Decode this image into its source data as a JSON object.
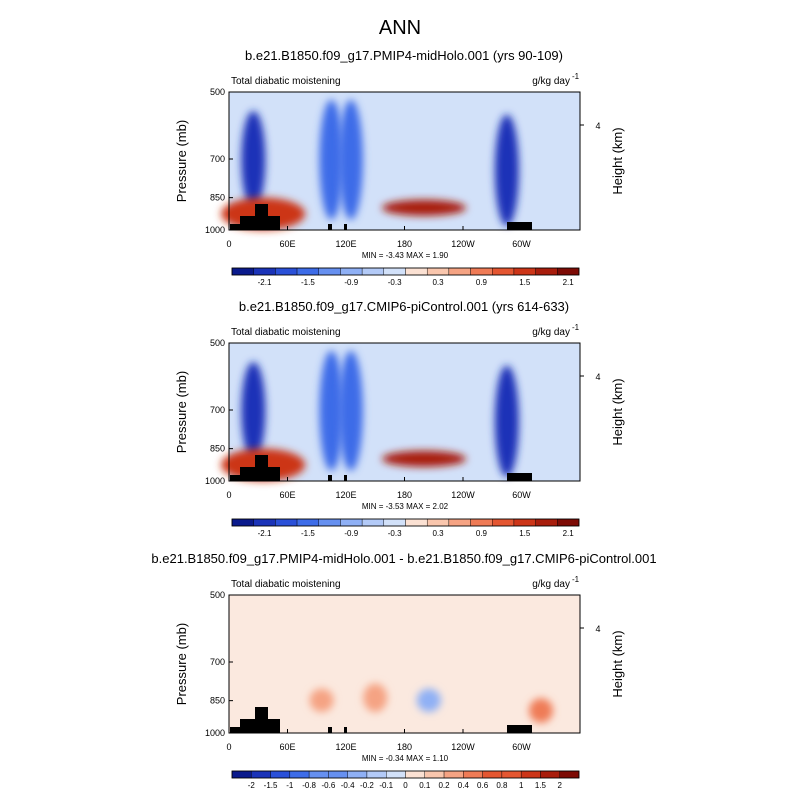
{
  "figure": {
    "title": "ANN"
  },
  "chart_data": [
    {
      "type": "heatmap",
      "title": "b.e21.B1850.f09_g17.PMIP4-midHolo.001 (yrs 90-109)",
      "left_label": "Total diabatic moistening",
      "units": "g/kg day",
      "units_exponent": "-1",
      "ylabel": "Pressure (mb)",
      "ylabel_right": "Height (km)",
      "yticks": [
        "500",
        "700",
        "850",
        "1000"
      ],
      "ytick_values": [
        500,
        700,
        850,
        1000
      ],
      "ylim": [
        1000,
        500
      ],
      "yscale": "log",
      "right_ticks": [
        "4"
      ],
      "xticks": [
        "0",
        "60E",
        "120E",
        "180",
        "120W",
        "60W"
      ],
      "xtick_values": [
        0,
        60,
        120,
        180,
        240,
        300
      ],
      "xlim": [
        0,
        360
      ],
      "min_max_text": "MIN = -3.43  MAX =  1.90",
      "colorbar_labels": [
        "-2.1",
        "-1.5",
        "-0.9",
        "-0.3",
        "0.3",
        "0.9",
        "1.5",
        "2.1"
      ],
      "colorbar_levels": [
        -2.4,
        -2.1,
        -1.8,
        -1.5,
        -1.2,
        -0.9,
        -0.6,
        -0.3,
        0,
        0.3,
        0.6,
        0.9,
        1.2,
        1.5,
        1.8,
        2.1,
        2.4
      ],
      "features": [
        {
          "kind": "drying",
          "lon": 25,
          "plo": 550,
          "phi": 900,
          "value": -2.1
        },
        {
          "kind": "drying",
          "lon": 105,
          "plo": 520,
          "phi": 950,
          "value": -1.5
        },
        {
          "kind": "drying",
          "lon": 125,
          "plo": 520,
          "phi": 950,
          "value": -1.5
        },
        {
          "kind": "drying",
          "lon": 285,
          "plo": 560,
          "phi": 980,
          "value": -2.1
        },
        {
          "kind": "moistening",
          "lon": 200,
          "plo": 860,
          "phi": 930,
          "value": 1.9
        },
        {
          "kind": "moistening",
          "lon": 35,
          "plo": 850,
          "phi": 1000,
          "value": 1.5
        }
      ]
    },
    {
      "type": "heatmap",
      "title": "b.e21.B1850.f09_g17.CMIP6-piControl.001 (yrs 614-633)",
      "left_label": "Total diabatic moistening",
      "units": "g/kg day",
      "units_exponent": "-1",
      "ylabel": "Pressure (mb)",
      "ylabel_right": "Height (km)",
      "yticks": [
        "500",
        "700",
        "850",
        "1000"
      ],
      "ytick_values": [
        500,
        700,
        850,
        1000
      ],
      "ylim": [
        1000,
        500
      ],
      "yscale": "log",
      "right_ticks": [
        "4"
      ],
      "xticks": [
        "0",
        "60E",
        "120E",
        "180",
        "120W",
        "60W"
      ],
      "xtick_values": [
        0,
        60,
        120,
        180,
        240,
        300
      ],
      "xlim": [
        0,
        360
      ],
      "min_max_text": "MIN = -3.53  MAX =  2.02",
      "colorbar_labels": [
        "-2.1",
        "-1.5",
        "-0.9",
        "-0.3",
        "0.3",
        "0.9",
        "1.5",
        "2.1"
      ],
      "colorbar_levels": [
        -2.4,
        -2.1,
        -1.8,
        -1.5,
        -1.2,
        -0.9,
        -0.6,
        -0.3,
        0,
        0.3,
        0.6,
        0.9,
        1.2,
        1.5,
        1.8,
        2.1,
        2.4
      ],
      "features": [
        {
          "kind": "drying",
          "lon": 25,
          "plo": 550,
          "phi": 900,
          "value": -2.1
        },
        {
          "kind": "drying",
          "lon": 105,
          "plo": 520,
          "phi": 950,
          "value": -1.5
        },
        {
          "kind": "drying",
          "lon": 125,
          "plo": 520,
          "phi": 950,
          "value": -1.5
        },
        {
          "kind": "drying",
          "lon": 285,
          "plo": 560,
          "phi": 980,
          "value": -2.1
        },
        {
          "kind": "moistening",
          "lon": 200,
          "plo": 860,
          "phi": 930,
          "value": 2.0
        },
        {
          "kind": "moistening",
          "lon": 35,
          "plo": 850,
          "phi": 1000,
          "value": 1.5
        }
      ]
    },
    {
      "type": "heatmap",
      "title": "b.e21.B1850.f09_g17.PMIP4-midHolo.001 - b.e21.B1850.f09_g17.CMIP6-piControl.001",
      "left_label": "Total diabatic moistening",
      "units": "g/kg day",
      "units_exponent": "-1",
      "ylabel": "Pressure (mb)",
      "ylabel_right": "Height (km)",
      "yticks": [
        "500",
        "700",
        "850",
        "1000"
      ],
      "ytick_values": [
        500,
        700,
        850,
        1000
      ],
      "ylim": [
        1000,
        500
      ],
      "yscale": "log",
      "right_ticks": [
        "4"
      ],
      "xticks": [
        "0",
        "60E",
        "120E",
        "180",
        "120W",
        "60W"
      ],
      "xtick_values": [
        0,
        60,
        120,
        180,
        240,
        300
      ],
      "xlim": [
        0,
        360
      ],
      "min_max_text": "MIN = -0.34  MAX =  1.10",
      "colorbar_labels": [
        "-2",
        "-1.5",
        "-1",
        "-0.8",
        "-0.6",
        "-0.4",
        "-0.2",
        "-0.1",
        "0",
        "0.1",
        "0.2",
        "0.4",
        "0.6",
        "0.8",
        "1",
        "1.5",
        "2"
      ],
      "colorbar_levels": [
        -2.5,
        -2,
        -1.5,
        -1,
        -0.8,
        -0.6,
        -0.4,
        -0.2,
        -0.1,
        0,
        0.1,
        0.2,
        0.4,
        0.6,
        0.8,
        1,
        1.5,
        2,
        2.5
      ],
      "features": [
        {
          "kind": "drying",
          "lon": 205,
          "plo": 800,
          "phi": 900,
          "value": -0.3
        },
        {
          "kind": "moistening",
          "lon": 150,
          "plo": 780,
          "phi": 900,
          "value": 0.2
        },
        {
          "kind": "moistening",
          "lon": 95,
          "plo": 800,
          "phi": 900,
          "value": 0.2
        },
        {
          "kind": "moistening",
          "lon": 320,
          "plo": 840,
          "phi": 950,
          "value": 0.4
        }
      ]
    }
  ]
}
